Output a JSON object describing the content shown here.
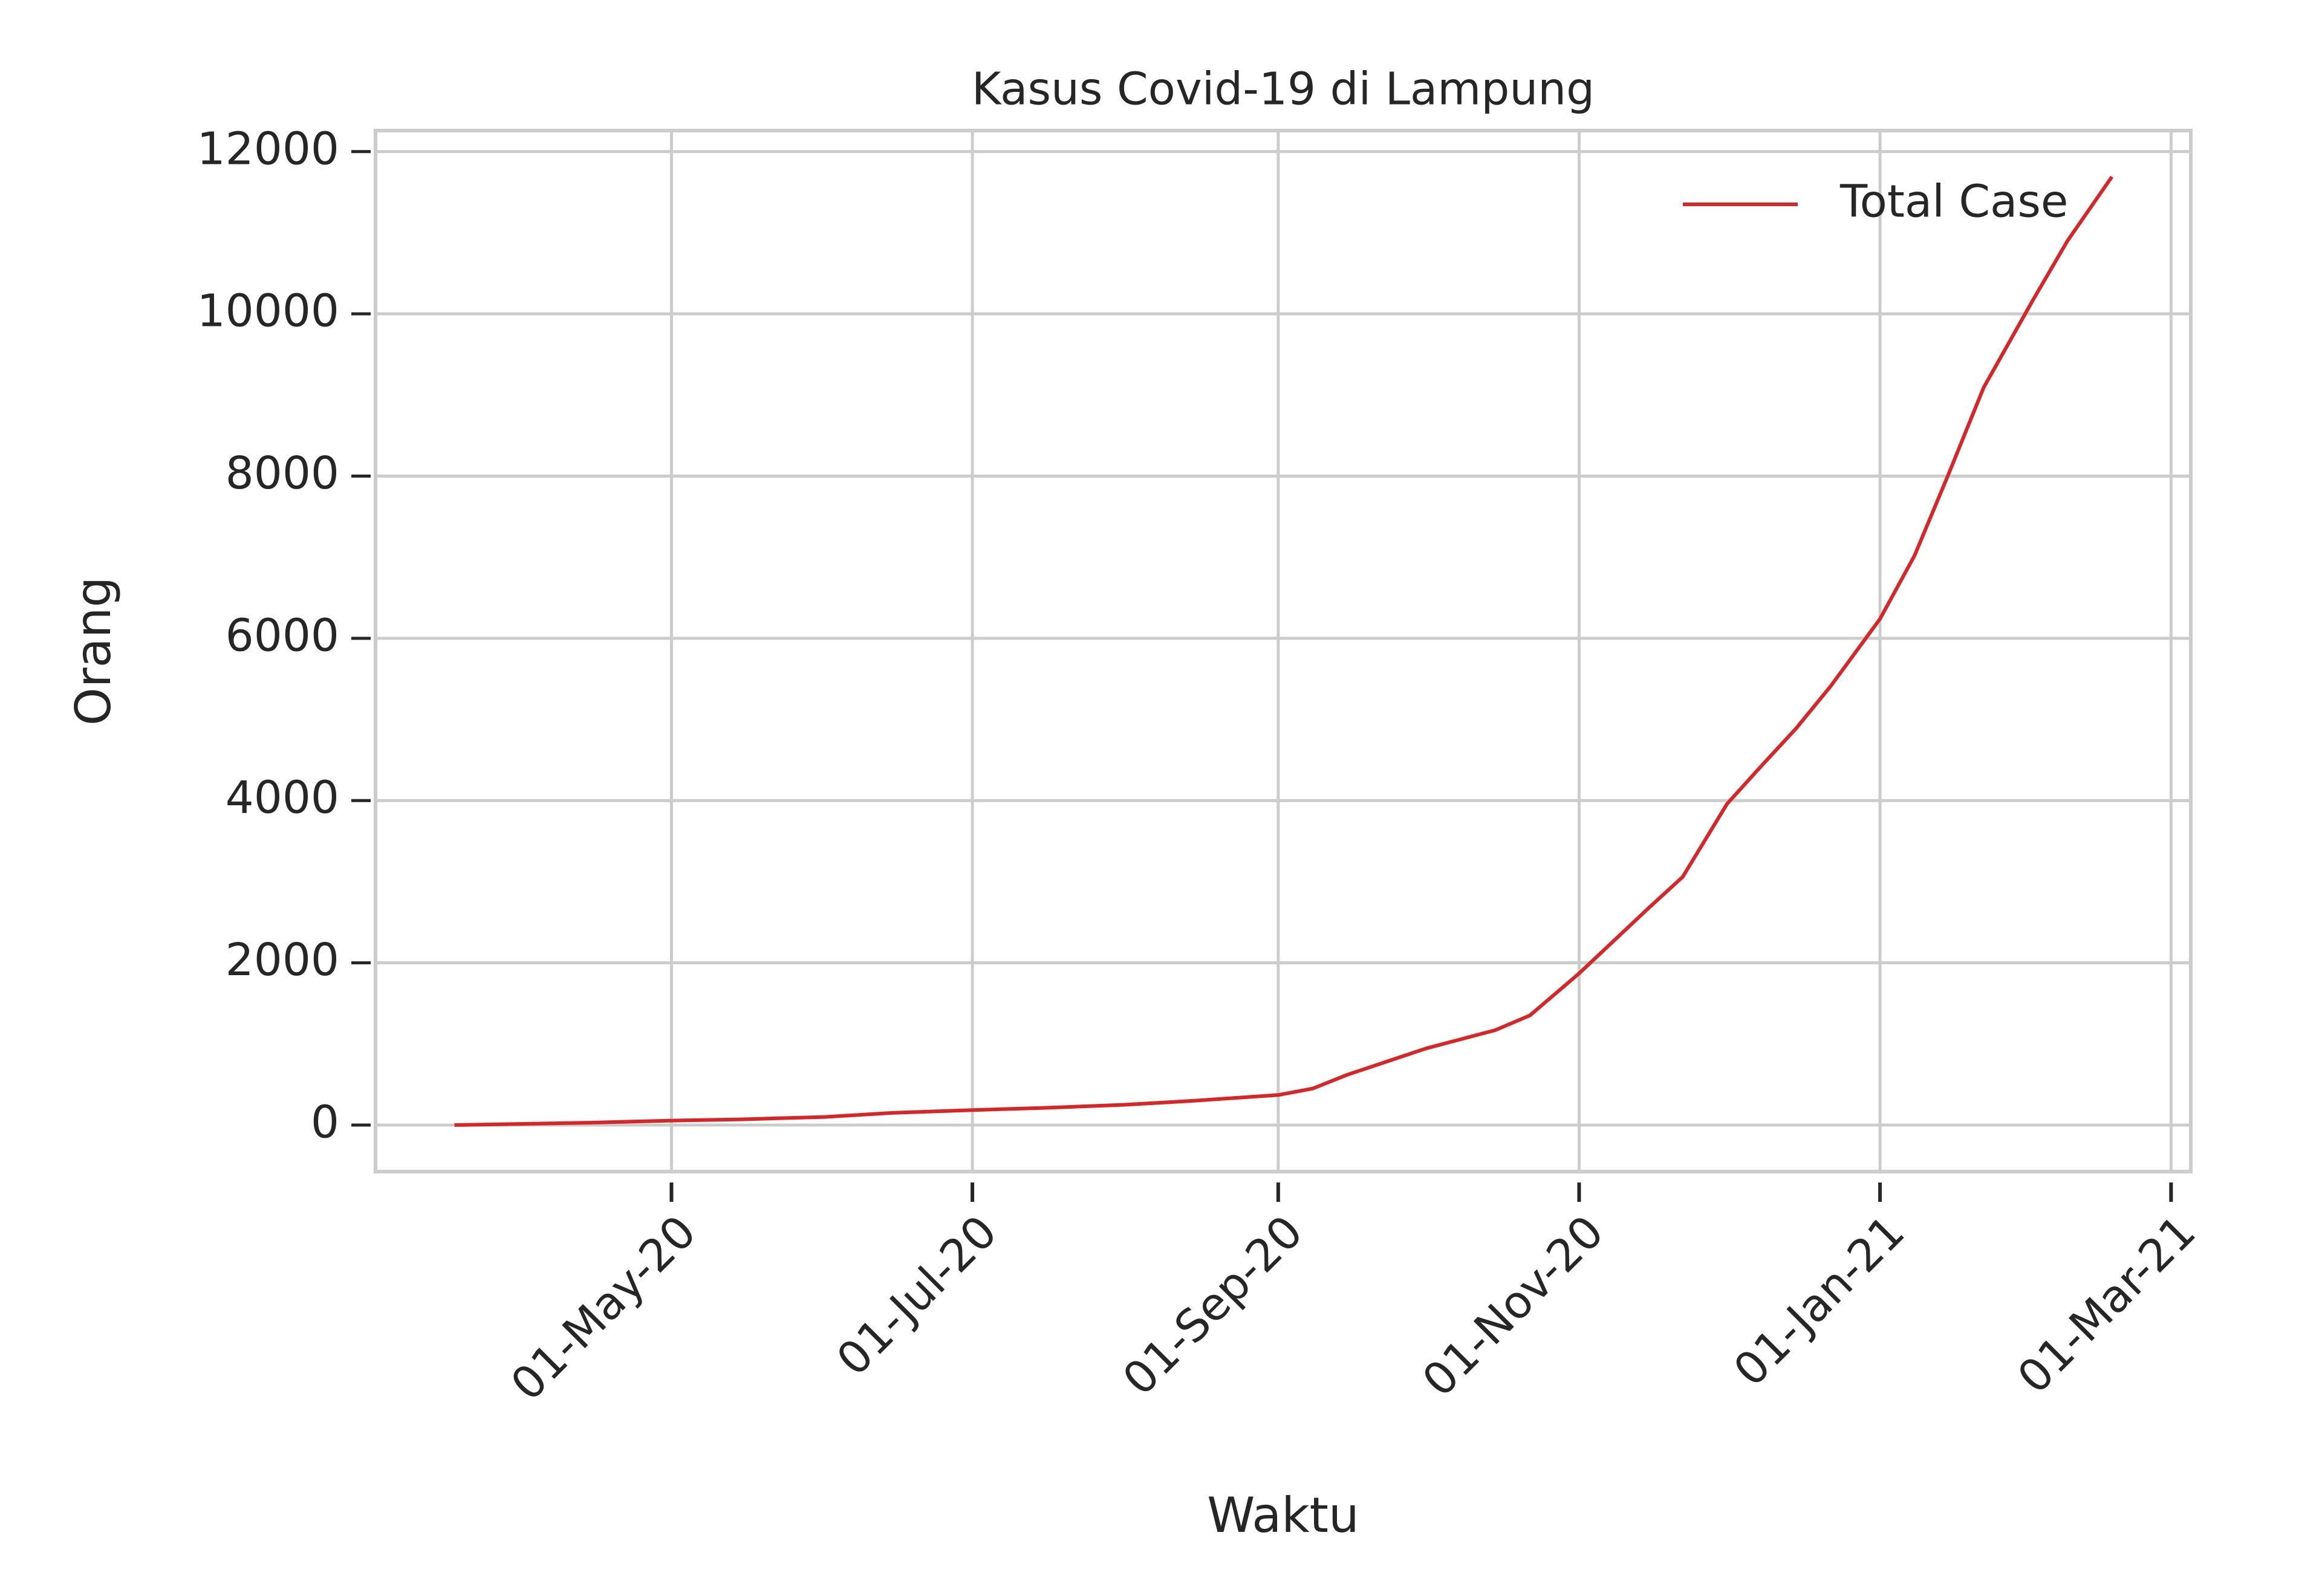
{
  "chart_data": {
    "type": "line",
    "title": "Kasus Covid-19 di Lampung",
    "x_label": "Waktu",
    "y_label": "Orang",
    "x": [
      "2020-03-18",
      "2020-04-01",
      "2020-04-15",
      "2020-05-01",
      "2020-05-15",
      "2020-06-01",
      "2020-06-15",
      "2020-07-01",
      "2020-07-15",
      "2020-08-01",
      "2020-08-15",
      "2020-09-01",
      "2020-09-08",
      "2020-09-15",
      "2020-10-01",
      "2020-10-15",
      "2020-10-22",
      "2020-11-01",
      "2020-11-15",
      "2020-11-22",
      "2020-12-01",
      "2020-12-08",
      "2020-12-15",
      "2020-12-22",
      "2021-01-01",
      "2021-01-08",
      "2021-01-15",
      "2021-01-22",
      "2021-02-01",
      "2021-02-08",
      "2021-02-17"
    ],
    "series": [
      {
        "name": "Total Case",
        "color": "#d62728",
        "values": [
          0,
          15,
          30,
          55,
          70,
          100,
          150,
          185,
          210,
          250,
          300,
          370,
          450,
          620,
          945,
          1170,
          1350,
          1870,
          2670,
          3060,
          3960,
          4430,
          4890,
          5410,
          6240,
          7020,
          8040,
          9090,
          10170,
          10900,
          11690
        ]
      }
    ],
    "xlim": [
      "2020-03-02",
      "2021-03-05"
    ],
    "xticks": [
      {
        "value": "2020-05-01",
        "label": "01-May-20"
      },
      {
        "value": "2020-07-01",
        "label": "01-Jul-20"
      },
      {
        "value": "2020-09-01",
        "label": "01-Sep-20"
      },
      {
        "value": "2020-11-01",
        "label": "01-Nov-20"
      },
      {
        "value": "2021-01-01",
        "label": "01-Jan-21"
      },
      {
        "value": "2021-03-01",
        "label": "01-Mar-21"
      }
    ],
    "ylim": [
      -574,
      12259
    ],
    "yticks": [
      0,
      2000,
      4000,
      6000,
      8000,
      10000,
      12000
    ],
    "grid": true,
    "legend": "upper right"
  }
}
